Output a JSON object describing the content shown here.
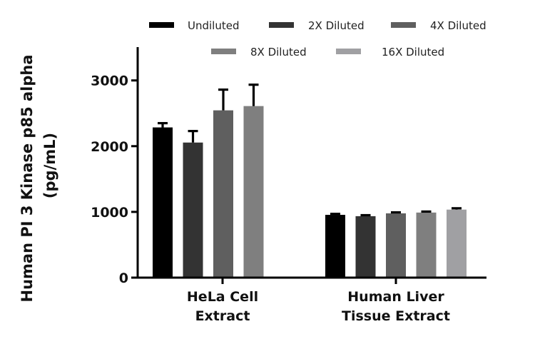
{
  "chart_data": {
    "type": "bar",
    "title": "",
    "ylabel": "Human PI 3 Kinase p85 alpha (pg/mL)",
    "ylabel_lines": [
      "Human PI 3 Kinase p85 alpha",
      "(pg/mL)"
    ],
    "xlabel": "",
    "ylim": [
      0,
      3500
    ],
    "yticks": [
      0,
      1000,
      2000,
      3000
    ],
    "grid": false,
    "legend_position": "top",
    "categories": [
      {
        "lines": [
          "HeLa Cell",
          "Extract"
        ]
      },
      {
        "lines": [
          "Human Liver",
          "Tissue Extract"
        ]
      }
    ],
    "series": [
      {
        "name": "Undiluted",
        "color": "#000000",
        "values": [
          2285,
          955
        ],
        "errors": [
          65,
          15
        ]
      },
      {
        "name": "2X Diluted",
        "color": "#333333",
        "values": [
          2055,
          935
        ],
        "errors": [
          175,
          15
        ]
      },
      {
        "name": "4X Diluted",
        "color": "#5f5f5f",
        "values": [
          2545,
          978
        ],
        "errors": [
          315,
          15
        ]
      },
      {
        "name": "8X Diluted",
        "color": "#7f7f7f",
        "values": [
          2610,
          990
        ],
        "errors": [
          325,
          15
        ]
      },
      {
        "name": "16X Diluted",
        "color": "#a0a0a3",
        "values": [
          null,
          1035
        ],
        "errors": [
          null,
          20
        ]
      }
    ]
  }
}
